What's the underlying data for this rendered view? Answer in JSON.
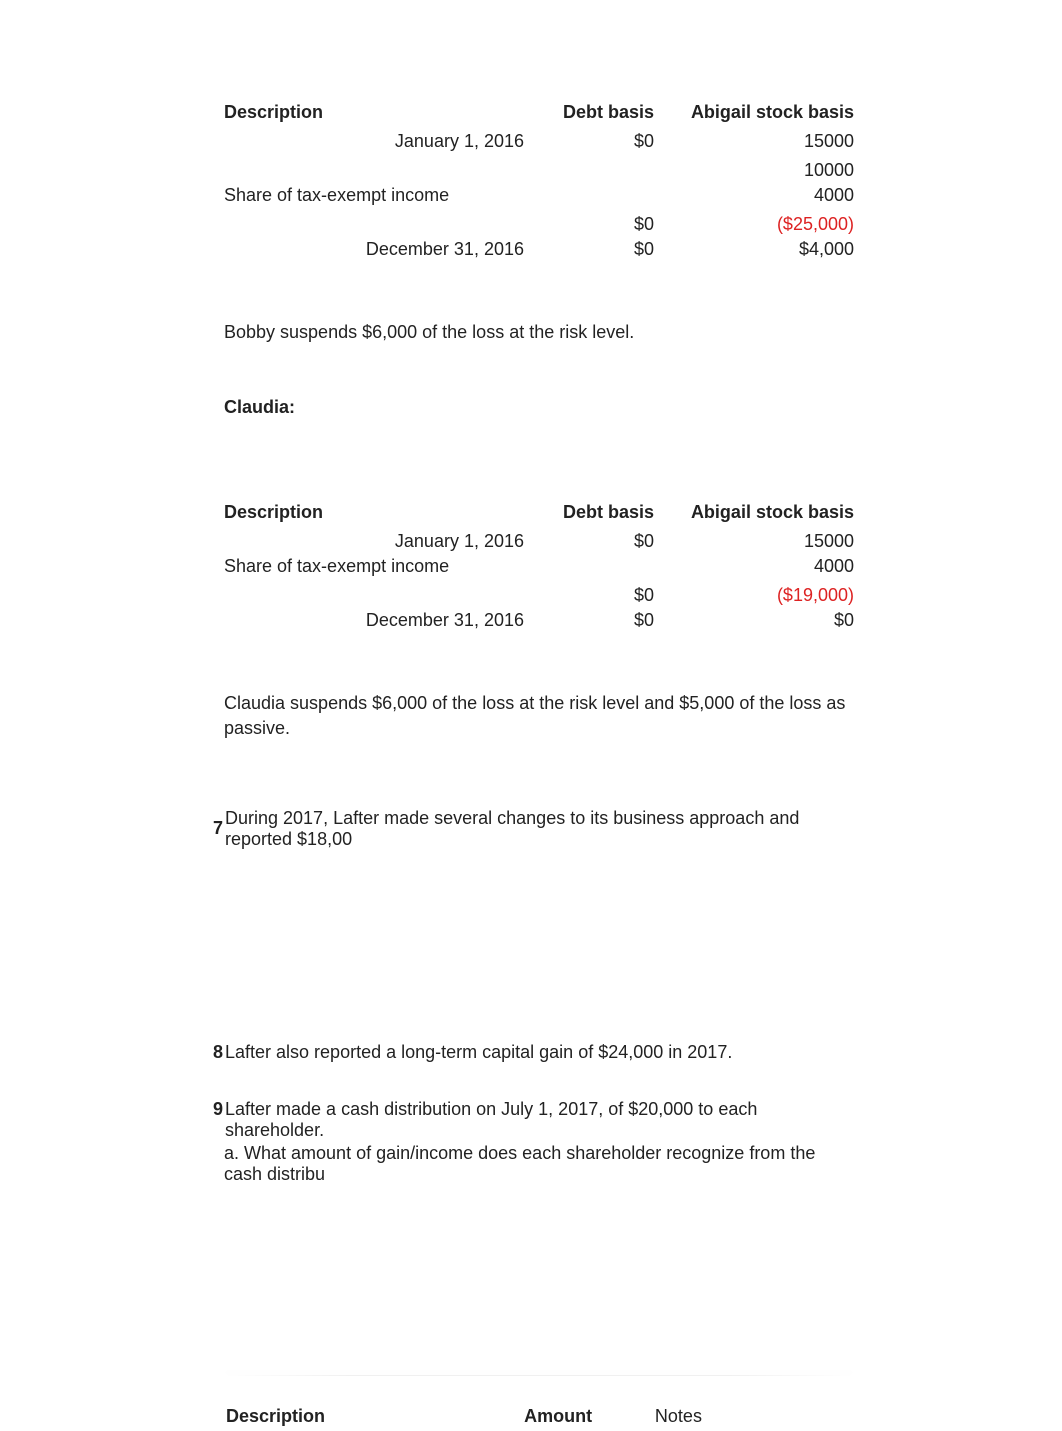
{
  "table1": {
    "headers": {
      "desc": "Description",
      "debt": "Debt basis",
      "stock": "Abigail stock basis"
    },
    "rows": [
      {
        "desc": "January 1, 2016",
        "desc_align": "right",
        "debt": "$0",
        "stock": "15000",
        "stock_class": ""
      },
      {
        "desc": "",
        "desc_align": "left",
        "debt": "",
        "stock": "",
        "stock_class": ""
      },
      {
        "desc": "",
        "desc_align": "left",
        "debt": "",
        "stock": "10000",
        "stock_class": ""
      },
      {
        "desc": "Share of tax-exempt income",
        "desc_align": "left",
        "debt": "",
        "stock": "4000",
        "stock_class": ""
      },
      {
        "desc": "",
        "desc_align": "left",
        "debt": "",
        "stock": "",
        "stock_class": ""
      },
      {
        "desc": "",
        "desc_align": "left",
        "debt": "$0",
        "stock": "($25,000)",
        "stock_class": "negative"
      },
      {
        "desc": "December 31, 2016",
        "desc_align": "right",
        "debt": "$0",
        "stock": "$4,000",
        "stock_class": ""
      }
    ]
  },
  "para_bobby": "Bobby suspends $6,000 of the loss at the risk level.",
  "label_claudia": "Claudia:",
  "table2": {
    "headers": {
      "desc": "Description",
      "debt": "Debt basis",
      "stock": "Abigail stock basis"
    },
    "rows": [
      {
        "desc": "January 1, 2016",
        "desc_align": "right",
        "debt": "$0",
        "stock": "15000",
        "stock_class": ""
      },
      {
        "desc": "Share of tax-exempt income",
        "desc_align": "left",
        "debt": "",
        "stock": "4000",
        "stock_class": ""
      },
      {
        "desc": "",
        "desc_align": "left",
        "debt": "",
        "stock": "",
        "stock_class": ""
      },
      {
        "desc": "",
        "desc_align": "left",
        "debt": "$0",
        "stock": "($19,000)",
        "stock_class": "negative"
      },
      {
        "desc": "December 31, 2016",
        "desc_align": "right",
        "debt": "$0",
        "stock": "$0",
        "stock_class": ""
      }
    ]
  },
  "para_claudia": "Claudia suspends $6,000 of the loss at the risk level and $5,000 of the loss as passive.",
  "q7": {
    "num": "7",
    "text": "During 2017, Lafter made several changes to its business approach and reported $18,00"
  },
  "q8": {
    "num": "8",
    "text": "Lafter also reported a long-term capital gain of $24,000 in 2017."
  },
  "q9": {
    "num": "9",
    "text": "Lafter made a cash distribution on July 1, 2017, of $20,000 to each shareholder."
  },
  "q9a": "a. What amount of gain/income does each shareholder recognize from the cash distribu",
  "bottom": {
    "desc": "Description",
    "amt": "Amount",
    "notes": "Notes"
  },
  "colors": {
    "text": "#222222",
    "negative": "#dd2222",
    "background": "#ffffff"
  }
}
